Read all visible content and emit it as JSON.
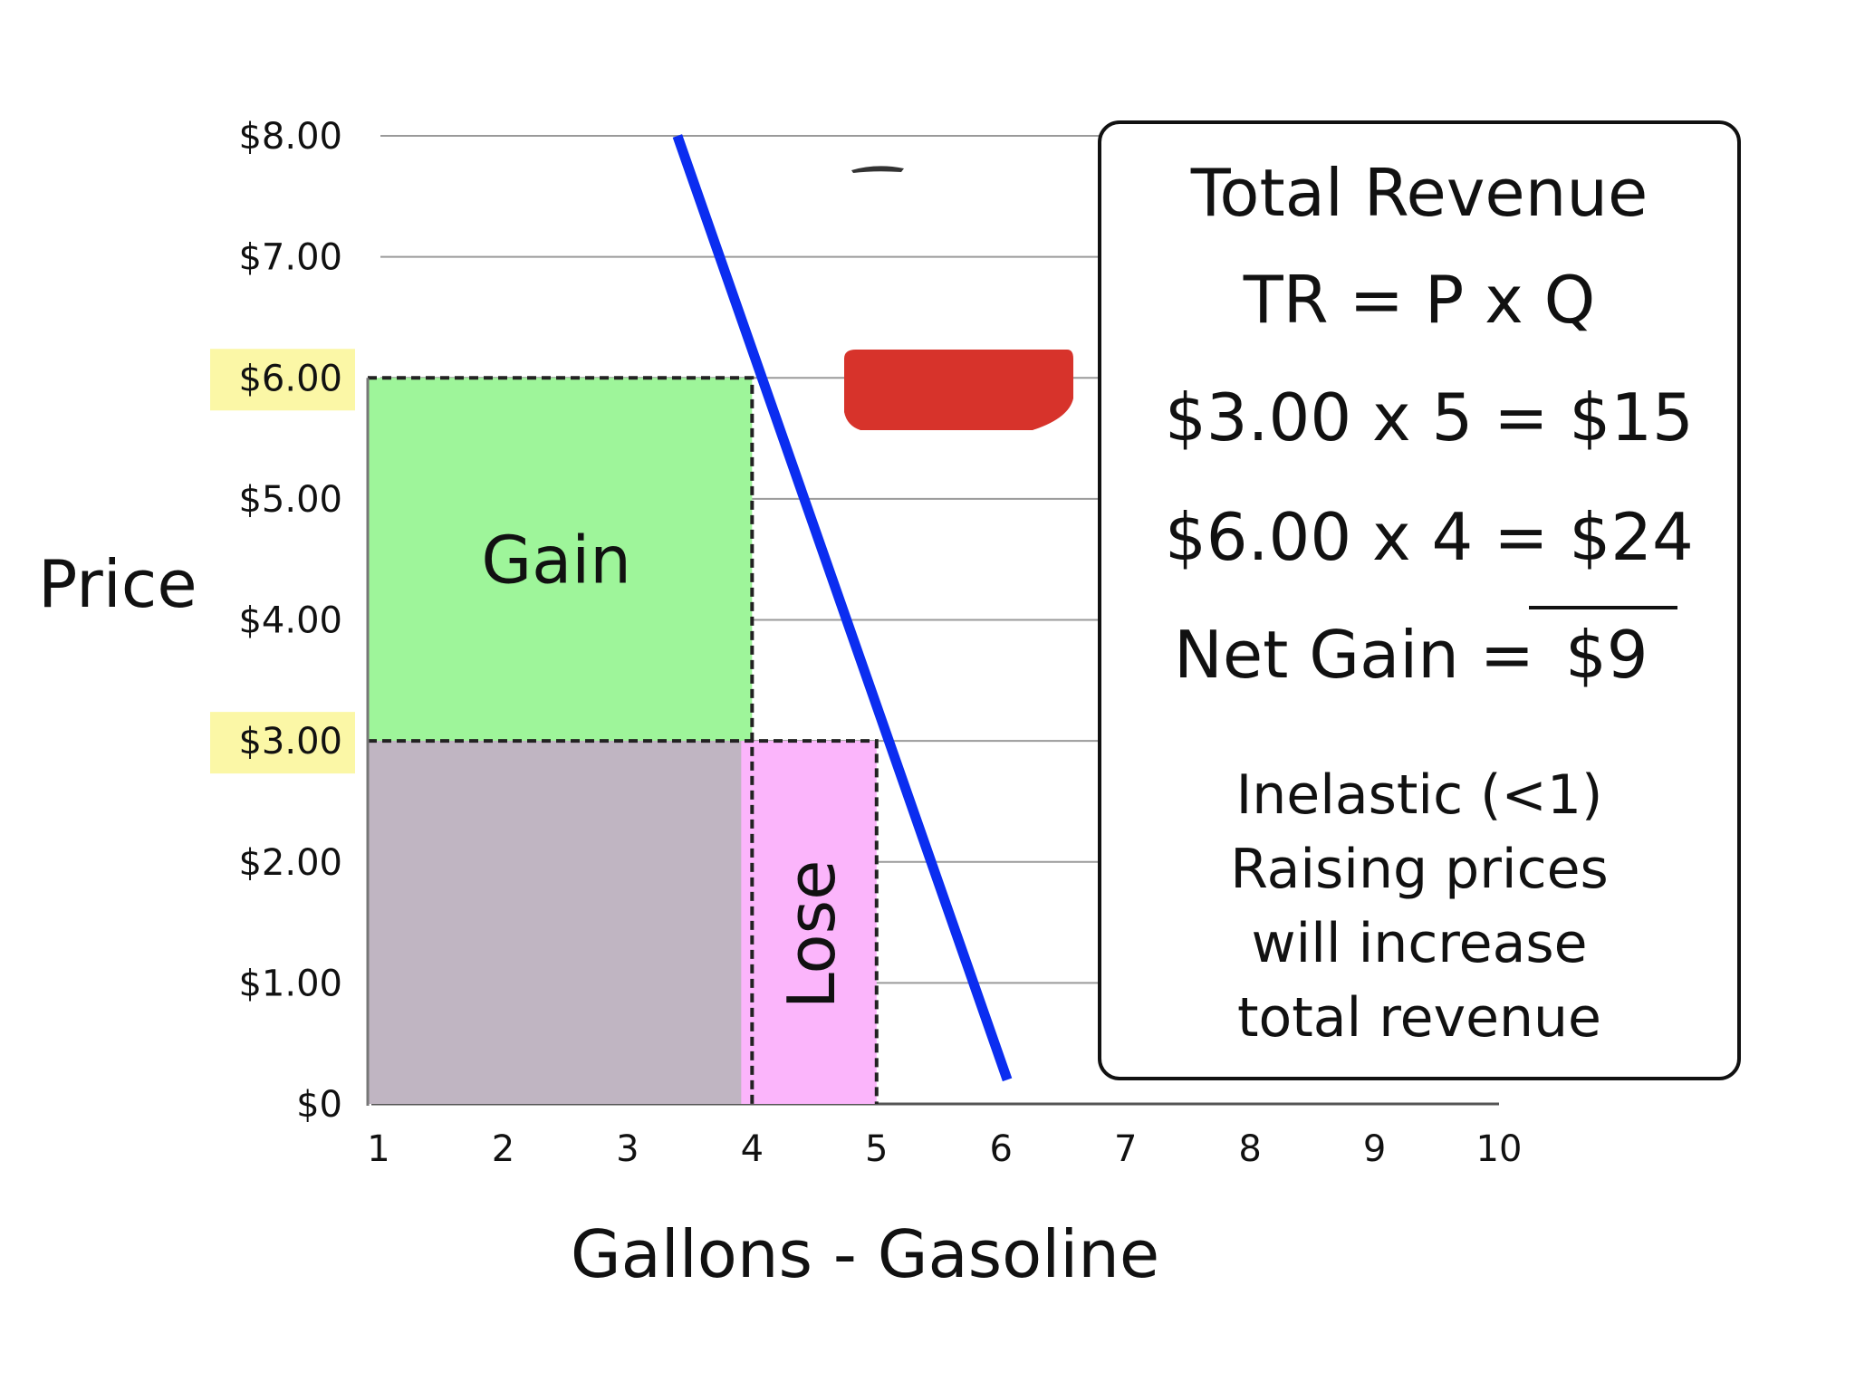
{
  "chart_data": {
    "type": "line",
    "ylabel": "Price",
    "xlabel": "Gallons - Gasoline",
    "y_ticks": [
      "$8.00",
      "$7.00",
      "$6.00",
      "$5.00",
      "$4.00",
      "$3.00",
      "$2.00",
      "$1.00",
      "$0"
    ],
    "x_ticks": [
      "1",
      "2",
      "3",
      "4",
      "5",
      "6",
      "7",
      "8",
      "9",
      "10"
    ],
    "ylim": [
      0,
      8
    ],
    "xlim": [
      1,
      10
    ],
    "grid": true,
    "demand_line": {
      "x": [
        3.4,
        6.05
      ],
      "y": [
        8.0,
        0.2
      ]
    },
    "highlighted_prices": [
      "$6.00",
      "$3.00"
    ],
    "regions": [
      {
        "label": "Gain",
        "x": [
          1,
          4
        ],
        "y": [
          3,
          6
        ],
        "color": "#9ef59a"
      },
      {
        "label": "",
        "x": [
          1,
          4
        ],
        "y": [
          0,
          3
        ],
        "color": "#c0b5c2"
      },
      {
        "label": "Lose",
        "x": [
          4,
          5
        ],
        "y": [
          0,
          3
        ],
        "color": "#fbb5fb"
      }
    ]
  },
  "colors": {
    "demand_line": "#0b2df0",
    "highlight": "#fbf7a6",
    "gain": "#9ef59a",
    "overlap": "#c0b5c2",
    "lose": "#fbb5fb",
    "can": "#d7332b"
  },
  "panel": {
    "title": "Total Revenue",
    "formula": "TR = P x Q",
    "calc1": "$3.00 x 5 = $15",
    "calc2": "$6.00 x 4 = $24",
    "net_label": "Net Gain =",
    "net_value": "$9",
    "note1": "Inelastic (<1)",
    "note2": "Raising prices",
    "note3": "will increase",
    "note4": "total revenue"
  }
}
